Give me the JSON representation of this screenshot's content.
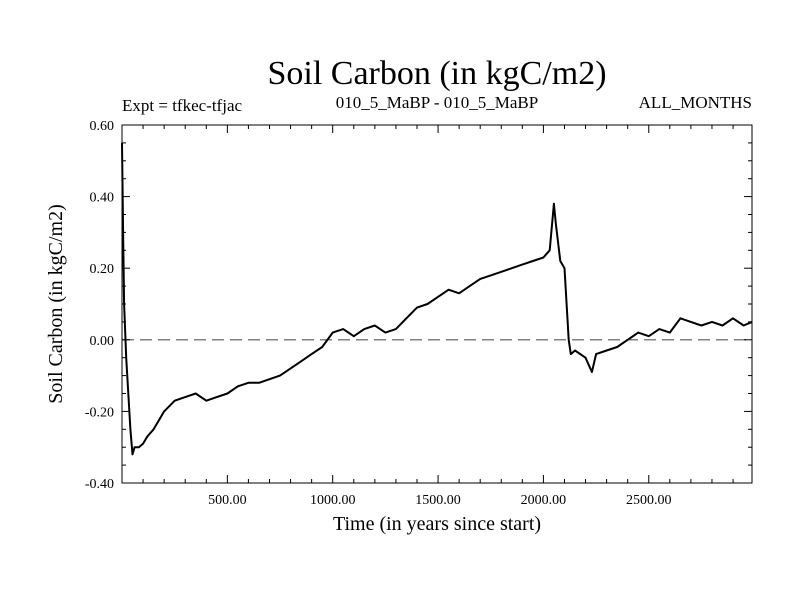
{
  "chart_data": {
    "type": "line",
    "title": "Soil Carbon (in kgC/m2)",
    "subtitle_left": "Expt = tfkec-tfjac",
    "subtitle_center": "010_5_MaBP - 010_5_MaBP",
    "subtitle_right": "ALL_MONTHS",
    "xlabel": "Time (in years since start)",
    "ylabel": "Soil Carbon (in kgC/m2)",
    "xlim": [
      0,
      2990
    ],
    "ylim": [
      -0.4,
      0.6
    ],
    "x_tick_values": [
      500,
      1000,
      1500,
      2000,
      2500
    ],
    "x_tick_labels": [
      "500.00",
      "1000.00",
      "1500.00",
      "2000.00",
      "2500.00"
    ],
    "y_tick_values": [
      -0.4,
      -0.2,
      0.0,
      0.2,
      0.4,
      0.6
    ],
    "y_tick_labels": [
      "-0.40",
      "-0.20",
      "0.00",
      "0.20",
      "0.40",
      "0.60"
    ],
    "reference_line": {
      "y": 0.0,
      "style": "dashed",
      "color": "#808080"
    },
    "line_color": "#000000",
    "grid": false,
    "series": [
      {
        "x": [
          0,
          5,
          10,
          20,
          30,
          40,
          50,
          60,
          80,
          100,
          120,
          150,
          180,
          200,
          250,
          300,
          350,
          400,
          450,
          500,
          550,
          600,
          650,
          700,
          750,
          800,
          850,
          900,
          950,
          1000,
          1050,
          1100,
          1150,
          1200,
          1250,
          1300,
          1350,
          1400,
          1450,
          1500,
          1550,
          1600,
          1650,
          1700,
          1750,
          1800,
          1850,
          1900,
          1950,
          2000,
          2030,
          2050,
          2060,
          2080,
          2100,
          2110,
          2120,
          2130,
          2150,
          2200,
          2230,
          2250,
          2300,
          2350,
          2400,
          2450,
          2500,
          2550,
          2600,
          2650,
          2700,
          2750,
          2800,
          2850,
          2900,
          2950,
          2990
        ],
        "y": [
          0.55,
          0.3,
          0.1,
          -0.05,
          -0.15,
          -0.25,
          -0.32,
          -0.3,
          -0.3,
          -0.29,
          -0.27,
          -0.25,
          -0.22,
          -0.2,
          -0.17,
          -0.16,
          -0.15,
          -0.17,
          -0.16,
          -0.15,
          -0.13,
          -0.12,
          -0.12,
          -0.11,
          -0.1,
          -0.08,
          -0.06,
          -0.04,
          -0.02,
          0.02,
          0.03,
          0.01,
          0.03,
          0.04,
          0.02,
          0.03,
          0.06,
          0.09,
          0.1,
          0.12,
          0.14,
          0.13,
          0.15,
          0.17,
          0.18,
          0.19,
          0.2,
          0.21,
          0.22,
          0.23,
          0.25,
          0.38,
          0.32,
          0.22,
          0.2,
          0.1,
          0.0,
          -0.04,
          -0.03,
          -0.05,
          -0.09,
          -0.04,
          -0.03,
          -0.02,
          0.0,
          0.02,
          0.01,
          0.03,
          0.02,
          0.06,
          0.05,
          0.04,
          0.05,
          0.04,
          0.06,
          0.04,
          0.05
        ]
      }
    ]
  }
}
